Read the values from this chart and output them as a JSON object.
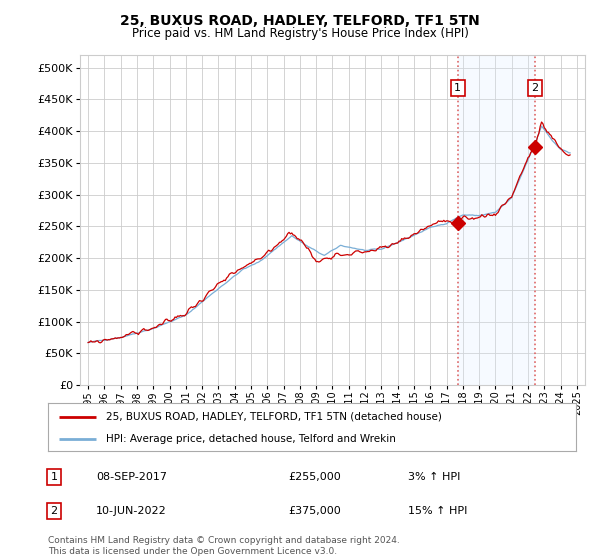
{
  "title": "25, BUXUS ROAD, HADLEY, TELFORD, TF1 5TN",
  "subtitle": "Price paid vs. HM Land Registry's House Price Index (HPI)",
  "legend_line1": "25, BUXUS ROAD, HADLEY, TELFORD, TF1 5TN (detached house)",
  "legend_line2": "HPI: Average price, detached house, Telford and Wrekin",
  "transaction1_label": "1",
  "transaction1_date": "08-SEP-2017",
  "transaction1_price": "£255,000",
  "transaction1_hpi": "3% ↑ HPI",
  "transaction1_year": 2017.69,
  "transaction1_value": 255000,
  "transaction2_label": "2",
  "transaction2_date": "10-JUN-2022",
  "transaction2_price": "£375,000",
  "transaction2_hpi": "15% ↑ HPI",
  "transaction2_year": 2022.44,
  "transaction2_value": 375000,
  "footer": "Contains HM Land Registry data © Crown copyright and database right 2024.\nThis data is licensed under the Open Government Licence v3.0.",
  "hpi_color": "#7aaed6",
  "price_color": "#cc0000",
  "marker_color": "#cc0000",
  "vline_color": "#dd6666",
  "background_color": "#ffffff",
  "grid_color": "#cccccc",
  "hpi_area_color": "#ddeeff",
  "ylim_min": 0,
  "ylim_max": 520000,
  "yticks": [
    0,
    50000,
    100000,
    150000,
    200000,
    250000,
    300000,
    350000,
    400000,
    450000,
    500000
  ],
  "xlim_min": 1994.5,
  "xlim_max": 2025.5,
  "xticks": [
    1995,
    1996,
    1997,
    1998,
    1999,
    2000,
    2001,
    2002,
    2003,
    2004,
    2005,
    2006,
    2007,
    2008,
    2009,
    2010,
    2011,
    2012,
    2013,
    2014,
    2015,
    2016,
    2017,
    2018,
    2019,
    2020,
    2021,
    2022,
    2023,
    2024,
    2025
  ]
}
